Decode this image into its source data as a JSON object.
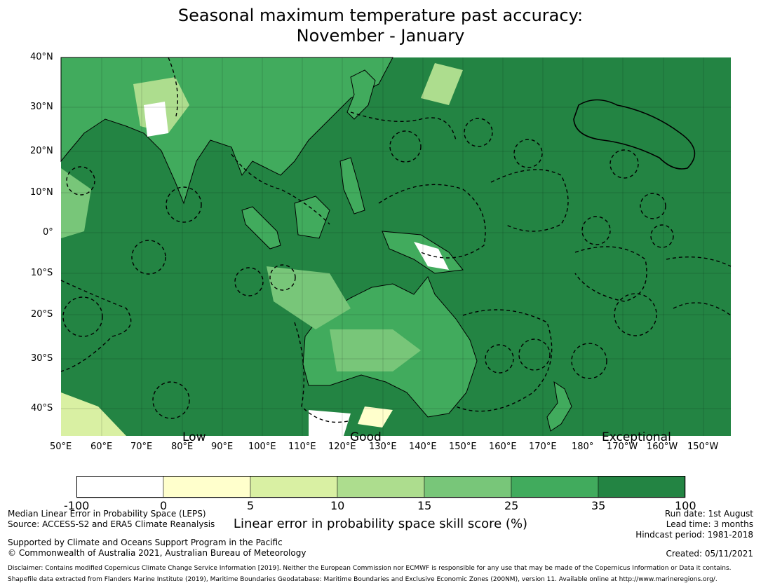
{
  "title": {
    "line1": "Seasonal maximum temperature past accuracy:",
    "line2": "November - January"
  },
  "map": {
    "lat_labels": [
      "40°N",
      "30°N",
      "20°N",
      "10°N",
      "0°",
      "10°S",
      "20°S",
      "30°S",
      "40°S"
    ],
    "lon_labels": [
      "50°E",
      "60°E",
      "70°E",
      "80°E",
      "90°E",
      "100°E",
      "110°E",
      "120°E",
      "130°E",
      "140°E",
      "150°E",
      "160°E",
      "170°E",
      "180°",
      "170°W",
      "160°W",
      "150°W"
    ],
    "category_labels": [
      "Low",
      "Good",
      "Exceptional"
    ],
    "ocean_color": "#238443",
    "land_color_high": "#41ab5d"
  },
  "colorbar": {
    "ticks": [
      "-100",
      "0",
      "5",
      "10",
      "15",
      "25",
      "35",
      "100"
    ],
    "colors": [
      "#ffffff",
      "#ffffcc",
      "#d9f0a3",
      "#addd8e",
      "#78c679",
      "#41ab5d",
      "#238443"
    ],
    "label": "Linear error in probability space skill score (%)"
  },
  "footer": {
    "left1": "Median Linear Error in Probability Space (LEPS)",
    "left2": "Source: ACCESS-S2 and ERA5 Climate Reanalysis",
    "left3": "Supported by Climate and Oceans Support Program in the Pacific",
    "left4": "© Commonwealth of Australia 2021, Australian Bureau of Meteorology",
    "right1": "Run date: 1st August",
    "right2": "Lead time: 3 months",
    "right3": "Hindcast period: 1981-2018",
    "created": "Created: 05/11/2021",
    "disclaimer": "Disclaimer: Contains modified Copernicus Climate Change Service Information [2019]. Neither the European Commission nor ECMWF is responsible for any use that may be made of the Copernicus Information or Data it contains.",
    "shapefile": "Shapefile data extracted from Flanders Marine Institute (2019), Maritime Boundaries Geodatabase: Maritime Boundaries and Exclusive Economic Zones (200NM), version 11. Available online at http://www.marineregions.org/."
  }
}
